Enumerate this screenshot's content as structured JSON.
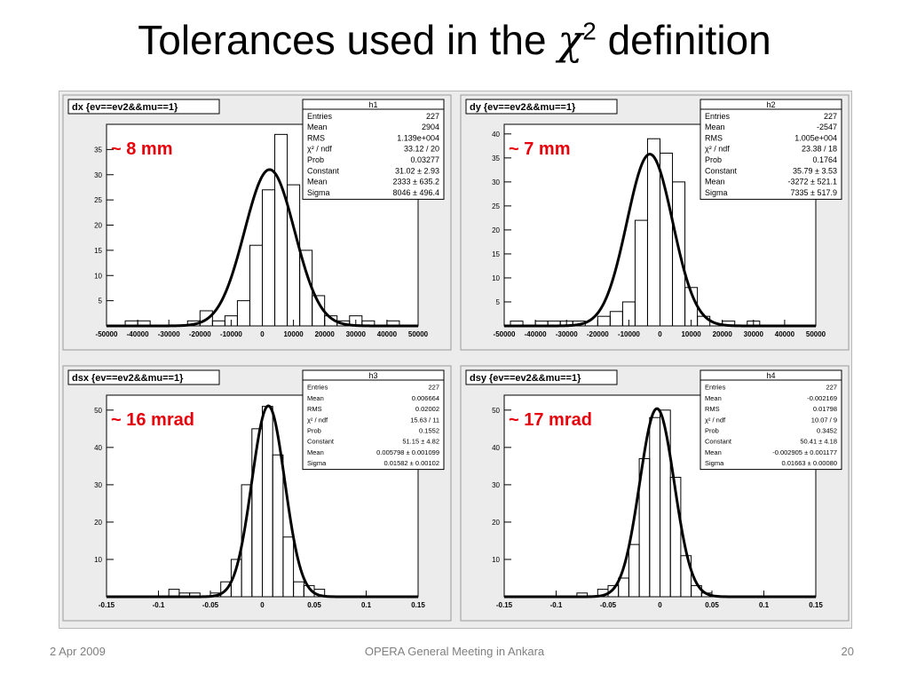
{
  "slide": {
    "title_pre": "Tolerances used in the ",
    "title_chi": "χ",
    "title_sup": "2",
    "title_post": " definition"
  },
  "footer": {
    "date": "2 Apr 2009",
    "center": "OPERA General Meeting in Ankara",
    "page": "20"
  },
  "colors": {
    "annotation": "#e8000a",
    "frame_bg": "#ececec",
    "plot_bg": "#ffffff",
    "curve": "#000000"
  },
  "chart_data": [
    {
      "type": "bar",
      "title": "dx {ev==ev2&&mu==1}",
      "annotation": "~ 8 mm",
      "stats": {
        "name": "h1",
        "rows": [
          [
            "Entries",
            "227"
          ],
          [
            "Mean",
            "2904"
          ],
          [
            "RMS",
            "1.139e+004"
          ],
          [
            "χ² / ndf",
            "33.12 / 20"
          ],
          [
            "Prob",
            "0.03277"
          ],
          [
            "Constant",
            "31.02 ± 2.93"
          ],
          [
            "Mean",
            "2333 ± 635.2"
          ],
          [
            "Sigma",
            "8046 ± 496.4"
          ]
        ]
      },
      "xlim": [
        -50000,
        50000
      ],
      "ylim": [
        0,
        40
      ],
      "xticks": [
        -50000,
        -40000,
        -30000,
        -20000,
        -10000,
        0,
        10000,
        20000,
        30000,
        40000,
        50000
      ],
      "xtick_labels": [
        "-50000",
        "-40000",
        "-30000",
        "-20000",
        "-10000",
        "0",
        "10000",
        "20000",
        "30000",
        "40000",
        "50000"
      ],
      "yticks": [
        5,
        10,
        15,
        20,
        25,
        30,
        35
      ],
      "ytick_labels": [
        "5",
        "10",
        "15",
        "20",
        "25",
        "30",
        "35"
      ],
      "bin_width": 4000,
      "bins_x": [
        -44000,
        -40000,
        -36000,
        -32000,
        -28000,
        -24000,
        -20000,
        -16000,
        -12000,
        -8000,
        -4000,
        0,
        4000,
        8000,
        12000,
        16000,
        20000,
        24000,
        28000,
        32000,
        36000,
        40000,
        44000,
        48000
      ],
      "bins_y": [
        1,
        1,
        0,
        0,
        0,
        1,
        3,
        1,
        2,
        5,
        16,
        27,
        38,
        28,
        15,
        6,
        2,
        1,
        2,
        1,
        0,
        1,
        0,
        0
      ],
      "fit": {
        "constant": 31.02,
        "mean": 2333,
        "sigma": 8046
      }
    },
    {
      "type": "bar",
      "title": "dy {ev==ev2&&mu==1}",
      "annotation": "~ 7 mm",
      "stats": {
        "name": "h2",
        "rows": [
          [
            "Entries",
            "227"
          ],
          [
            "Mean",
            "-2547"
          ],
          [
            "RMS",
            "1.005e+004"
          ],
          [
            "χ² / ndf",
            "23.38 / 18"
          ],
          [
            "Prob",
            "0.1764"
          ],
          [
            "Constant",
            "35.79 ± 3.53"
          ],
          [
            "Mean",
            "-3272 ± 521.1"
          ],
          [
            "Sigma",
            "7335 ± 517.9"
          ]
        ]
      },
      "xlim": [
        -50000,
        50000
      ],
      "ylim": [
        0,
        42
      ],
      "xticks": [
        -50000,
        -40000,
        -30000,
        -20000,
        -10000,
        0,
        10000,
        20000,
        30000,
        40000,
        50000
      ],
      "xtick_labels": [
        "-50000",
        "-40000",
        "-30000",
        "-20000",
        "-10000",
        "0",
        "10000",
        "20000",
        "30000",
        "40000",
        "50000"
      ],
      "yticks": [
        5,
        10,
        15,
        20,
        25,
        30,
        35,
        40
      ],
      "ytick_labels": [
        "5",
        "10",
        "15",
        "20",
        "25",
        "30",
        "35",
        "40"
      ],
      "bin_width": 4000,
      "bins_x": [
        -48000,
        -44000,
        -40000,
        -36000,
        -32000,
        -28000,
        -24000,
        -20000,
        -16000,
        -12000,
        -8000,
        -4000,
        0,
        4000,
        8000,
        12000,
        16000,
        20000,
        24000,
        28000,
        32000
      ],
      "bins_y": [
        1,
        0,
        1,
        1,
        1,
        1,
        0,
        2,
        3,
        5,
        22,
        39,
        36,
        30,
        8,
        2,
        0,
        1,
        0,
        1,
        0
      ],
      "fit": {
        "constant": 35.79,
        "mean": -3272,
        "sigma": 7335
      }
    },
    {
      "type": "bar",
      "title": "dsx {ev==ev2&&mu==1}",
      "annotation": "~ 16 mrad",
      "stats": {
        "name": "h3",
        "rows": [
          [
            "Entries",
            "227"
          ],
          [
            "Mean",
            "0.006664"
          ],
          [
            "RMS",
            "0.02002"
          ],
          [
            "χ² / ndf",
            "15.63 / 11"
          ],
          [
            "Prob",
            "0.1552"
          ],
          [
            "Constant",
            "51.15 ± 4.82"
          ],
          [
            "Mean",
            "0.005798 ± 0.001099"
          ],
          [
            "Sigma",
            "0.01582 ± 0.00102"
          ]
        ]
      },
      "xlim": [
        -0.15,
        0.15
      ],
      "ylim": [
        0,
        54
      ],
      "xticks": [
        -0.15,
        -0.1,
        -0.05,
        0,
        0.05,
        0.1,
        0.15
      ],
      "xtick_labels": [
        "-0.15",
        "-0.1",
        "-0.05",
        "0",
        "0.05",
        "0.1",
        "0.15"
      ],
      "yticks": [
        10,
        20,
        30,
        40,
        50
      ],
      "ytick_labels": [
        "10",
        "20",
        "30",
        "40",
        "50"
      ],
      "bin_width": 0.01,
      "bins_x": [
        -0.09,
        -0.08,
        -0.07,
        -0.06,
        -0.05,
        -0.04,
        -0.03,
        -0.02,
        -0.01,
        0,
        0.01,
        0.02,
        0.03,
        0.04,
        0.05,
        0.06
      ],
      "bins_y": [
        2,
        1,
        1,
        0,
        1,
        4,
        10,
        30,
        45,
        51,
        38,
        16,
        4,
        3,
        2,
        0
      ],
      "fit": {
        "constant": 51.15,
        "mean": 0.005798,
        "sigma": 0.01582
      }
    },
    {
      "type": "bar",
      "title": "dsy {ev==ev2&&mu==1}",
      "annotation": "~ 17 mrad",
      "stats": {
        "name": "h4",
        "rows": [
          [
            "Entries",
            "227"
          ],
          [
            "Mean",
            "-0.002169"
          ],
          [
            "RMS",
            "0.01798"
          ],
          [
            "χ² / ndf",
            "10.07 / 9"
          ],
          [
            "Prob",
            "0.3452"
          ],
          [
            "Constant",
            "50.41 ± 4.18"
          ],
          [
            "Mean",
            "-0.002905 ± 0.001177"
          ],
          [
            "Sigma",
            "0.01663 ± 0.00080"
          ]
        ]
      },
      "xlim": [
        -0.15,
        0.15
      ],
      "ylim": [
        0,
        54
      ],
      "xticks": [
        -0.15,
        -0.1,
        -0.05,
        0,
        0.05,
        0.1,
        0.15
      ],
      "xtick_labels": [
        "-0.15",
        "-0.1",
        "-0.05",
        "0",
        "0.05",
        "0.1",
        "0.15"
      ],
      "yticks": [
        10,
        20,
        30,
        40,
        50
      ],
      "ytick_labels": [
        "10",
        "20",
        "30",
        "40",
        "50"
      ],
      "bin_width": 0.01,
      "bins_x": [
        -0.08,
        -0.07,
        -0.06,
        -0.05,
        -0.04,
        -0.03,
        -0.02,
        -0.01,
        0,
        0.01,
        0.02,
        0.03,
        0.04
      ],
      "bins_y": [
        1,
        0,
        2,
        3,
        5,
        14,
        37,
        48,
        50,
        32,
        11,
        3,
        1
      ],
      "fit": {
        "constant": 50.41,
        "mean": -0.002905,
        "sigma": 0.01663
      }
    }
  ]
}
